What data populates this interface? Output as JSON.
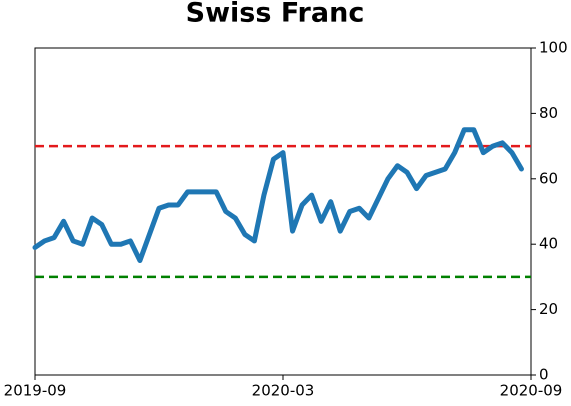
{
  "chart_data": {
    "type": "line",
    "title": "Swiss Franc",
    "categories": [
      "2019-09",
      null,
      null,
      null,
      null,
      null,
      null,
      null,
      null,
      null,
      null,
      null,
      null,
      null,
      null,
      null,
      null,
      null,
      null,
      null,
      null,
      null,
      null,
      null,
      null,
      null,
      "2020-03",
      null,
      null,
      null,
      null,
      null,
      null,
      null,
      null,
      null,
      null,
      null,
      null,
      null,
      null,
      null,
      null,
      null,
      null,
      null,
      null,
      null,
      null,
      null,
      null,
      null,
      "2020-09"
    ],
    "series": [
      {
        "name": "Swiss Franc",
        "color": "#1f77b4",
        "values": [
          39,
          41,
          42,
          47,
          41,
          40,
          48,
          46,
          40,
          40,
          41,
          35,
          43,
          51,
          52,
          52,
          56,
          56,
          56,
          56,
          50,
          48,
          43,
          41,
          55,
          66,
          68,
          44,
          52,
          55,
          47,
          53,
          44,
          50,
          51,
          48,
          54,
          60,
          64,
          62,
          57,
          61,
          62,
          63,
          68,
          75,
          75,
          68,
          70,
          71,
          68,
          63,
          null
        ]
      }
    ],
    "reference_lines": [
      {
        "value": 70,
        "color": "#e31a1c"
      },
      {
        "value": 30,
        "color": "#008000"
      }
    ],
    "ylim": [
      0,
      100
    ],
    "yticks": [
      0,
      20,
      40,
      60,
      80,
      100
    ],
    "y_axis_side": "right"
  }
}
